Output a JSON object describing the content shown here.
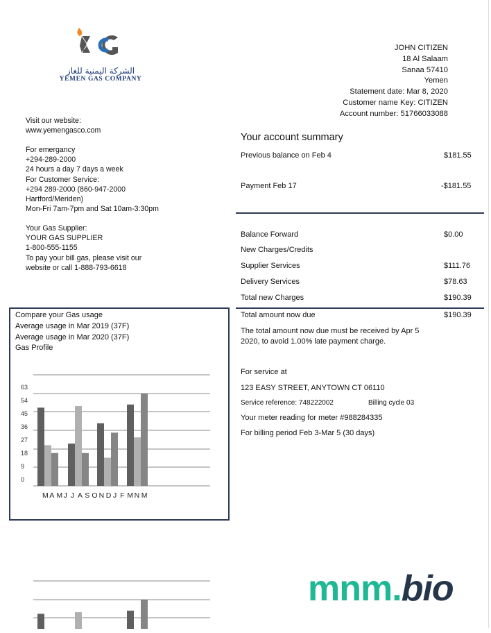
{
  "company": {
    "arabic_name": "الشركة اليمنية للغاز",
    "name": "YEMEN GAS COMPANY",
    "colors": {
      "navy": "#1f3c7a",
      "blue": "#2c6fb7",
      "flame": "#f08a1c",
      "gray": "#555555"
    }
  },
  "customer": {
    "lines": [
      "JOHN CITIZEN",
      "18 Al Salaam",
      "Sanaa 57410",
      "Yemen",
      "Statement date: Mar 8, 2020",
      "Customer name Key: CITIZEN",
      "Account number: 51766033088"
    ]
  },
  "contact": {
    "website_label": "Visit our website:",
    "website": "www.yemengasco.com",
    "emergency": [
      "For emergancy",
      "+294-289-2000",
      "24 hours a day 7 days a week",
      "For Customer Service:",
      "+294 289-2000 (860-947-2000",
      "Hartford/Meriden)",
      "Mon-Fri 7am-7pm and Sat 10am-3:30pm"
    ],
    "supplier": [
      "Your Gas Supplier:",
      "YOUR GAS SUPPLIER",
      "1-800-555-1155",
      "To pay your bill gas, please visit our",
      "website or call 1-888-793-6618"
    ]
  },
  "summary": {
    "title": "Your account summary",
    "previous_balance": {
      "label": "Previous balance on Feb 4",
      "amount": "$181.55"
    },
    "payment": {
      "label": "Payment Feb 17",
      "amount": "-$181.55"
    },
    "balance_forward": {
      "label": "Balance Forward",
      "amount": "$0.00"
    },
    "new_charges_label": "New Charges/Credits",
    "supplier_services": {
      "label": "Supplier Services",
      "amount": "$111.76"
    },
    "delivery_services": {
      "label": "Delivery Services",
      "amount": "$78.63"
    },
    "total_new_charges": {
      "label": "Total new Charges",
      "amount": "$190.39"
    },
    "total_due": {
      "label": "Total amount now due",
      "amount": "$190.39"
    },
    "due_note_1": "The total amount now due must be received by Apr 5",
    "due_note_2": "2020, to avoid 1.00% late payment charge."
  },
  "service": {
    "label": "For service at",
    "address": "123 EASY STREET, ANYTOWN CT 06110",
    "reference": "Service reference: 748222002",
    "billing_cycle": "Billing cycle 03",
    "meter": "Your meter reading for meter #988284335",
    "period": "For billing period Feb 3-Mar 5 (30 days)"
  },
  "usage_panel": {
    "lines": [
      "Compare your Gas usage",
      "Average usage in Mar 2019 (37F)",
      "Average usage in Mar 2020 (37F)",
      "Gas Profile"
    ]
  },
  "chart_data": {
    "type": "bar",
    "title": "",
    "xlabel": "",
    "ylabel": "",
    "ylim": [
      0,
      63
    ],
    "y_ticks": [
      "63",
      "54",
      "45",
      "36",
      "27",
      "18",
      "9",
      "0"
    ],
    "x_tick_labels": [
      "M",
      "A",
      "M",
      "J",
      "J",
      "A",
      "S",
      "O",
      "N",
      "D",
      "J",
      "F",
      "M",
      "N",
      "M"
    ],
    "grid": true,
    "series_colors": [
      "#5f5f5f",
      "#b0b0b0",
      "#858585"
    ],
    "groups": [
      [
        50,
        26,
        21
      ],
      [
        27,
        51,
        21
      ],
      [
        40,
        18,
        34
      ],
      [
        52,
        31,
        59
      ]
    ]
  },
  "watermark": {
    "part1": "mnm.",
    "part2": "bio",
    "color1": "#1fb894",
    "color2": "#25354a"
  }
}
